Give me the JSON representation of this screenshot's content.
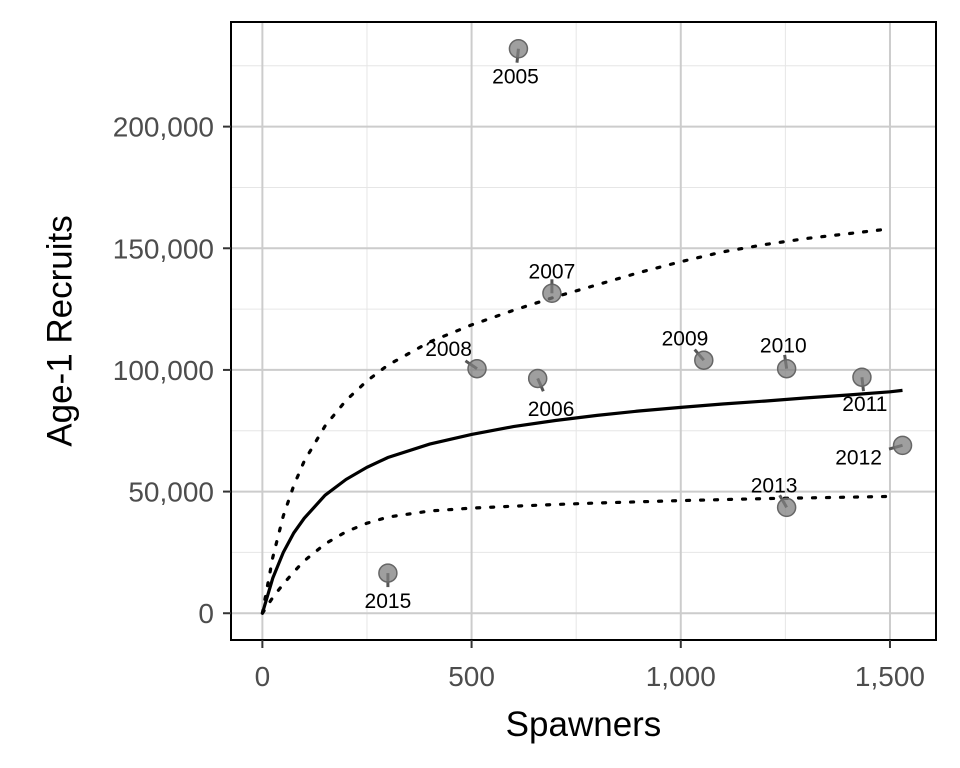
{
  "chart_data": {
    "type": "scatter",
    "xlabel": "Spawners",
    "ylabel": "Age-1 Recruits",
    "xlim": [
      -75,
      1610
    ],
    "ylim": [
      -11000,
      243000
    ],
    "x_ticks": [
      0,
      500,
      1000,
      1500
    ],
    "x_tick_labels": [
      "0",
      "500",
      "1,000",
      "1,500"
    ],
    "y_ticks": [
      0,
      50000,
      100000,
      150000,
      200000
    ],
    "y_tick_labels": [
      "0",
      "50,000",
      "100,000",
      "150,000",
      "200,000"
    ],
    "grid": true,
    "legend": "none",
    "colors": {
      "points": "#7f7f7f",
      "curves": "#000000",
      "grid_major": "#cccccc",
      "grid_minor": "#e6e6e6",
      "panel_border": "#000000"
    },
    "points": [
      {
        "label": "2005",
        "x": 612,
        "y": 232000,
        "label_x": 605,
        "label_y": 220500
      },
      {
        "label": "2006",
        "x": 658,
        "y": 96500,
        "label_x": 690,
        "label_y": 84000
      },
      {
        "label": "2007",
        "x": 692,
        "y": 131500,
        "label_x": 692,
        "label_y": 140500
      },
      {
        "label": "2008",
        "x": 513,
        "y": 100500,
        "label_x": 445,
        "label_y": 108500
      },
      {
        "label": "2009",
        "x": 1055,
        "y": 104000,
        "label_x": 1010,
        "label_y": 113000
      },
      {
        "label": "2010",
        "x": 1253,
        "y": 100500,
        "label_x": 1245,
        "label_y": 110000
      },
      {
        "label": "2011",
        "x": 1433,
        "y": 97000,
        "label_x": 1440,
        "label_y": 86000
      },
      {
        "label": "2012",
        "x": 1530,
        "y": 69000,
        "label_x": 1425,
        "label_y": 64000
      },
      {
        "label": "2013",
        "x": 1253,
        "y": 43500,
        "label_x": 1223,
        "label_y": 52500
      },
      {
        "label": "2015",
        "x": 300,
        "y": 16500,
        "label_x": 300,
        "label_y": 5000
      }
    ],
    "series": [
      {
        "line_style": "solid",
        "x": [
          0,
          25,
          50,
          75,
          100,
          150,
          200,
          250,
          300,
          400,
          500,
          600,
          700,
          800,
          900,
          1000,
          1100,
          1200,
          1300,
          1400,
          1500,
          1530
        ],
        "y": [
          0,
          14500,
          25000,
          33000,
          39000,
          48500,
          55000,
          60000,
          64000,
          69500,
          73500,
          76700,
          79200,
          81300,
          83100,
          84600,
          86000,
          87200,
          88500,
          89700,
          91000,
          91600
        ]
      },
      {
        "line_style": "dotted",
        "x": [
          0,
          25,
          50,
          75,
          100,
          150,
          200,
          250,
          300,
          400,
          500,
          600,
          700,
          800,
          900,
          1000,
          1100,
          1200,
          1300,
          1400,
          1500
        ],
        "y": [
          0,
          23000,
          40000,
          52500,
          62500,
          77000,
          87500,
          95500,
          102000,
          111500,
          118500,
          124500,
          130000,
          135000,
          140000,
          144500,
          148500,
          151500,
          154000,
          156000,
          158000
        ]
      },
      {
        "line_style": "dotted",
        "x": [
          0,
          25,
          50,
          75,
          100,
          150,
          200,
          250,
          300,
          400,
          500,
          600,
          700,
          800,
          900,
          1000,
          1100,
          1200,
          1300,
          1400,
          1500
        ],
        "y": [
          0,
          6500,
          12000,
          17000,
          21500,
          28500,
          33500,
          37000,
          39500,
          42000,
          43200,
          44000,
          44700,
          45300,
          45800,
          46300,
          46700,
          47100,
          47400,
          47700,
          48000
        ]
      }
    ]
  }
}
